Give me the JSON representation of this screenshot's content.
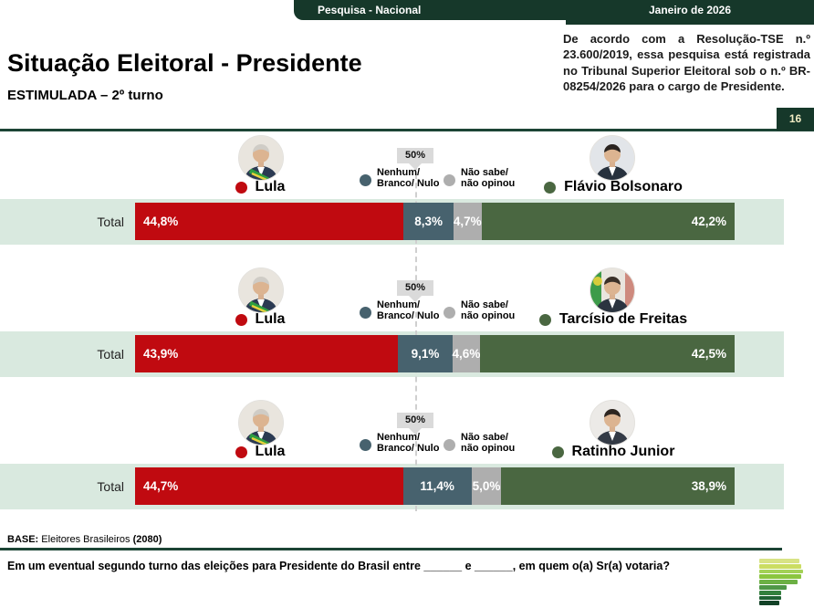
{
  "header": {
    "left_label": "Pesquisa - Nacional",
    "right_label": "Janeiro de 2026",
    "tse_note": "De acordo com a Resolução-TSE n.º 23.600/2019, essa pesquisa está registrada no Tribunal Superior Eleitoral sob o n.º BR-08254/2026 para o cargo de Presidente.",
    "page_number": "16"
  },
  "title": "Situação Eleitoral - Presidente",
  "subtitle": "ESTIMULADA – 2º turno",
  "legend": {
    "marker_label": "50%",
    "none_line1": "Nenhum/",
    "none_line2": "Branco/ Nulo",
    "dk_line1": "Não sabe/",
    "dk_line2": "não opinou"
  },
  "colors": {
    "header_green": "#16382a",
    "rule_green": "#1c4435",
    "row_bg": "#d9e9df",
    "lula_red": "#c00a10",
    "none_slate": "#47626e",
    "dk_gray": "#aeaeae",
    "opponent_green": "#4a6741",
    "badge_text": "#f1ecc3",
    "dashed_gray": "#cfcfcf"
  },
  "matchups": [
    {
      "row_label": "Total",
      "left_candidate": "Lula",
      "right_candidate": "Flávio Bolsonaro",
      "left_avatar": "lula",
      "right_avatar": "flavio",
      "values": {
        "lula": 44.8,
        "none": 8.3,
        "dk": 4.7,
        "opponent": 42.2
      },
      "labels": {
        "lula": "44,8%",
        "none": "8,3%",
        "dk": "4,7%",
        "opponent": "42,2%"
      }
    },
    {
      "row_label": "Total",
      "left_candidate": "Lula",
      "right_candidate": "Tarcísio de Freitas",
      "left_avatar": "lula",
      "right_avatar": "tarcisio",
      "values": {
        "lula": 43.9,
        "none": 9.1,
        "dk": 4.6,
        "opponent": 42.5
      },
      "labels": {
        "lula": "43,9%",
        "none": "9,1%",
        "dk": "4,6%",
        "opponent": "42,5%"
      }
    },
    {
      "row_label": "Total",
      "left_candidate": "Lula",
      "right_candidate": "Ratinho Junior",
      "left_avatar": "lula",
      "right_avatar": "ratinho",
      "values": {
        "lula": 44.7,
        "none": 11.4,
        "dk": 5.0,
        "opponent": 38.9
      },
      "labels": {
        "lula": "44,7%",
        "none": "11,4%",
        "dk": "5,0%",
        "opponent": "38,9%"
      }
    }
  ],
  "chart_data": [
    {
      "type": "bar",
      "orientation": "horizontal",
      "stacked": true,
      "title": "Lula x Flávio Bolsonaro — 2º turno (Total)",
      "categories": [
        "Total"
      ],
      "series": [
        {
          "name": "Lula",
          "values": [
            44.8
          ]
        },
        {
          "name": "Nenhum/ Branco/ Nulo",
          "values": [
            8.3
          ]
        },
        {
          "name": "Não sabe/ não opinou",
          "values": [
            4.7
          ]
        },
        {
          "name": "Flávio Bolsonaro",
          "values": [
            42.2
          ]
        }
      ],
      "xlim": [
        0,
        100
      ],
      "unit": "%",
      "annotations": [
        "50%"
      ],
      "legend_position": "top"
    },
    {
      "type": "bar",
      "orientation": "horizontal",
      "stacked": true,
      "title": "Lula x Tarcísio de Freitas — 2º turno (Total)",
      "categories": [
        "Total"
      ],
      "series": [
        {
          "name": "Lula",
          "values": [
            43.9
          ]
        },
        {
          "name": "Nenhum/ Branco/ Nulo",
          "values": [
            9.1
          ]
        },
        {
          "name": "Não sabe/ não opinou",
          "values": [
            4.6
          ]
        },
        {
          "name": "Tarcísio de Freitas",
          "values": [
            42.5
          ]
        }
      ],
      "xlim": [
        0,
        100
      ],
      "unit": "%",
      "annotations": [
        "50%"
      ],
      "legend_position": "top"
    },
    {
      "type": "bar",
      "orientation": "horizontal",
      "stacked": true,
      "title": "Lula x Ratinho Junior — 2º turno (Total)",
      "categories": [
        "Total"
      ],
      "series": [
        {
          "name": "Lula",
          "values": [
            44.7
          ]
        },
        {
          "name": "Nenhum/ Branco/ Nulo",
          "values": [
            11.4
          ]
        },
        {
          "name": "Não sabe/ não opinou",
          "values": [
            5.0
          ]
        },
        {
          "name": "Ratinho Junior",
          "values": [
            38.9
          ]
        }
      ],
      "xlim": [
        0,
        100
      ],
      "unit": "%",
      "annotations": [
        "50%"
      ],
      "legend_position": "top"
    }
  ],
  "footer": {
    "base_prefix": "BASE:",
    "base_text": " Eleitores Brasileiros ",
    "base_n": "(2080)",
    "question": "Em um eventual segundo turno das eleições para Presidente do Brasil entre ______ e ______, em quem o(a) Sr(a) votaria?"
  },
  "logo_bars": [
    {
      "w": 44,
      "c": "#d8e385"
    },
    {
      "w": 46,
      "c": "#cbdd62"
    },
    {
      "w": 48,
      "c": "#a3d156"
    },
    {
      "w": 46,
      "c": "#8bc53f"
    },
    {
      "w": 42,
      "c": "#6cb044"
    },
    {
      "w": 30,
      "c": "#4f9747"
    },
    {
      "w": 24,
      "c": "#33803e"
    },
    {
      "w": 24,
      "c": "#1f6234"
    },
    {
      "w": 22,
      "c": "#124227"
    }
  ]
}
